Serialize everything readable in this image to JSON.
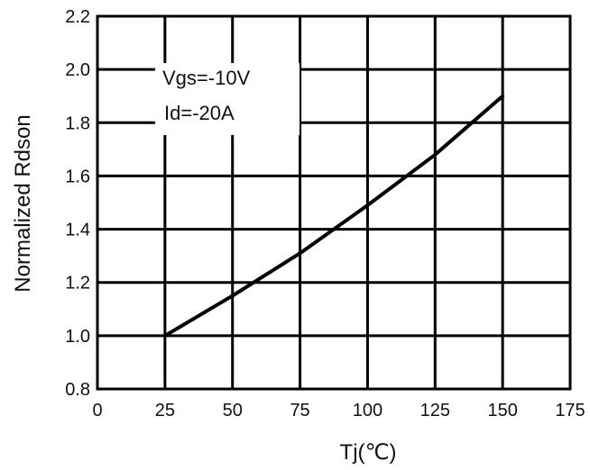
{
  "chart_data": {
    "type": "line",
    "title": "",
    "xlabel": "Tj(℃)",
    "ylabel": "Normalized  Rdson",
    "xlim": [
      0,
      175
    ],
    "ylim": [
      0.8,
      2.2
    ],
    "x_ticks": [
      0,
      25,
      50,
      75,
      100,
      125,
      150,
      175
    ],
    "y_ticks": [
      0.8,
      1.0,
      1.2,
      1.4,
      1.6,
      1.8,
      2.0,
      2.2
    ],
    "x_tick_labels": [
      "0",
      "25",
      "50",
      "75",
      "100",
      "125",
      "150",
      "175"
    ],
    "y_tick_labels": [
      "0.8",
      "1.0",
      "1.2",
      "1.4",
      "1.6",
      "1.8",
      "2.0",
      "2.2"
    ],
    "grid": true,
    "series": [
      {
        "x": [
          25,
          50,
          75,
          100,
          125,
          150
        ],
        "y": [
          1.0,
          1.15,
          1.31,
          1.49,
          1.68,
          1.9
        ]
      }
    ],
    "annotations": [
      "Vgs=-10V",
      "Id=-20A"
    ],
    "line_color": "#000000",
    "grid_color": "#000000"
  }
}
